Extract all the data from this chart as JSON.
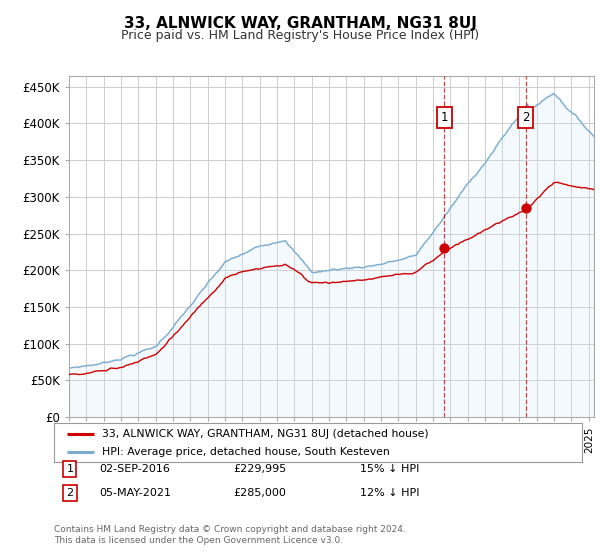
{
  "title": "33, ALNWICK WAY, GRANTHAM, NG31 8UJ",
  "subtitle": "Price paid vs. HM Land Registry's House Price Index (HPI)",
  "ylabel_ticks": [
    "£0",
    "£50K",
    "£100K",
    "£150K",
    "£200K",
    "£250K",
    "£300K",
    "£350K",
    "£400K",
    "£450K"
  ],
  "ytick_values": [
    0,
    50000,
    100000,
    150000,
    200000,
    250000,
    300000,
    350000,
    400000,
    450000
  ],
  "ylim": [
    0,
    465000
  ],
  "xlim_start": 1995.0,
  "xlim_end": 2025.3,
  "background_color": "#ffffff",
  "plot_bg_color": "#ffffff",
  "grid_color": "#cccccc",
  "red_line_color": "#cc0000",
  "blue_line_color": "#7aabcf",
  "blue_fill_color": "#d0e8f5",
  "point1_x": 2016.67,
  "point1_y": 229995,
  "point2_x": 2021.35,
  "point2_y": 285000,
  "annotation1_label": "1",
  "annotation2_label": "2",
  "legend_red_label": "33, ALNWICK WAY, GRANTHAM, NG31 8UJ (detached house)",
  "legend_blue_label": "HPI: Average price, detached house, South Kesteven",
  "footer": "Contains HM Land Registry data © Crown copyright and database right 2024.\nThis data is licensed under the Open Government Licence v3.0.",
  "title_fontsize": 11,
  "subtitle_fontsize": 9
}
